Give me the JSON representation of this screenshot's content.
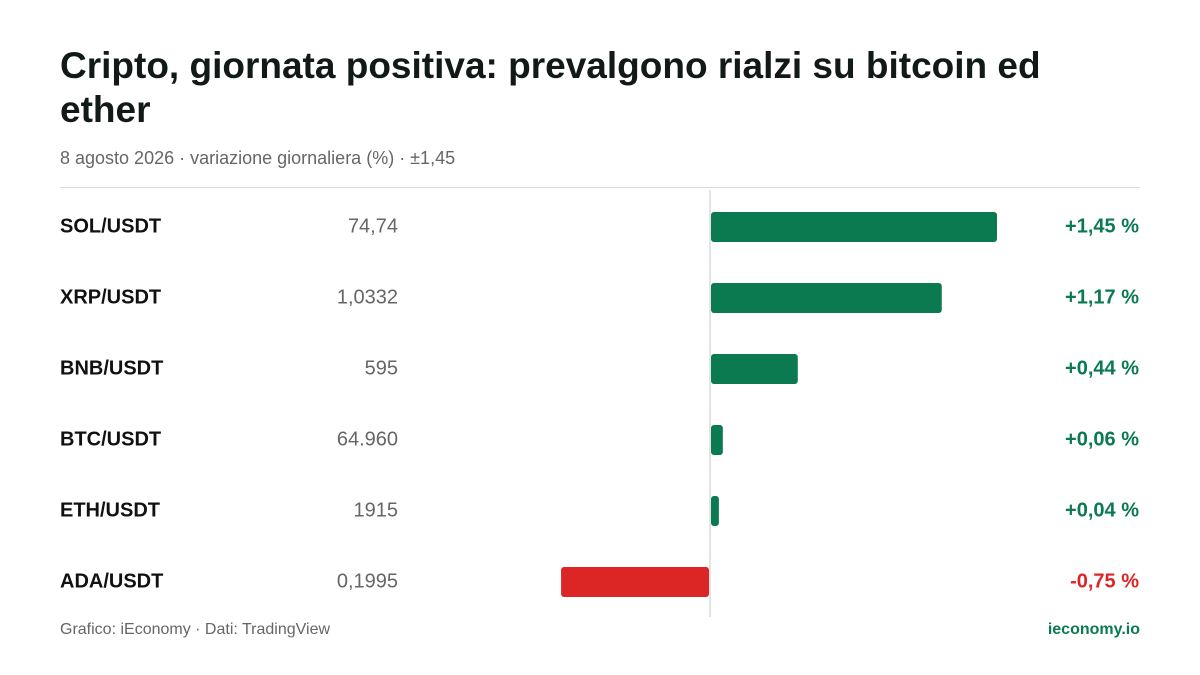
{
  "header": {
    "title": "Cripto, giornata positiva: prevalgono rialzi su bitcoin ed ether",
    "subtitle": "8 agosto 2026 · variazione giornaliera (%) · ±1,45"
  },
  "footer": {
    "source": "Grafico: iEconomy · Dati: TradingView",
    "brand": "ieconomy.io"
  },
  "colors": {
    "positive": "#0b7a50",
    "negative": "#dc2626",
    "axis": "#dcdcdc"
  },
  "chart_data": {
    "type": "bar",
    "orientation": "horizontal",
    "categories": [
      "SOL/USDT",
      "XRP/USDT",
      "BNB/USDT",
      "BTC/USDT",
      "ETH/USDT",
      "ADA/USDT"
    ],
    "prices": [
      "74,74",
      "1,0332",
      "595",
      "64.960",
      "1915",
      "0,1995"
    ],
    "values": [
      1.45,
      1.17,
      0.44,
      0.06,
      0.04,
      -0.75
    ],
    "value_labels": [
      "+1,45 %",
      "+1,17 %",
      "+0,44 %",
      "+0,06 %",
      "+0,04 %",
      "-0,75 %"
    ],
    "xlim": [
      -1.45,
      1.45
    ],
    "grid": false,
    "legend": "none"
  }
}
